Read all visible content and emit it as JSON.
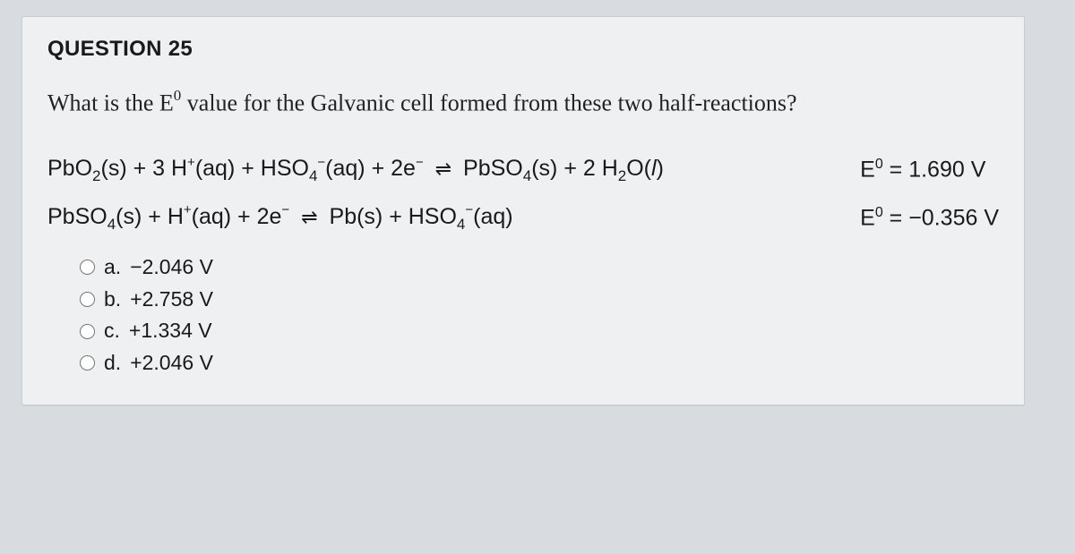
{
  "card": {
    "title": "QUESTION 25",
    "background_color": "#eef0f2",
    "title_fontsize": 24
  },
  "prompt": {
    "prefix": "What is the E",
    "sup": "0",
    "suffix": " value for the Galvanic cell formed from these two half-reactions?",
    "font_family": "Georgia, serif",
    "fontsize": 26
  },
  "reactions": [
    {
      "lhs_html": "PbO<sub>2</sub>(s) + 3 H<sup>+</sup>(aq) + HSO<sub>4</sub><sup class=\"charge\">−</sup>(aq) + 2e<sup class=\"charge\">−</sup>",
      "rhs_html": "PbSO<sub>4</sub>(s) + 2 H<sub>2</sub>O(<i>l</i>)",
      "e0_prefix": "E",
      "e0_sup": "0",
      "e0_value": " = 1.690 V"
    },
    {
      "lhs_html": "PbSO<sub>4</sub>(s) + H<sup>+</sup>(aq) + 2e<sup class=\"charge\">−</sup>",
      "rhs_html": "Pb(s) + HSO<sub>4</sub><sup class=\"charge\">−</sup>(aq)",
      "e0_prefix": "E",
      "e0_sup": "0",
      "e0_value": " = −0.356 V"
    }
  ],
  "arrow_glyph": "⇌",
  "options": [
    {
      "letter": "a.",
      "text": "−2.046 V"
    },
    {
      "letter": "b.",
      "text": "+2.758 V"
    },
    {
      "letter": "c.",
      "text": "+1.334 V"
    },
    {
      "letter": "d.",
      "text": "+2.046 V"
    }
  ]
}
